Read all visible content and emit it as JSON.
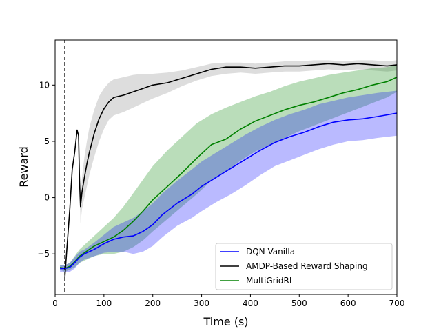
{
  "chart_data": {
    "type": "line",
    "title": "",
    "xlabel": "Time (s)",
    "ylabel": "Reward",
    "xlim": [
      0,
      700
    ],
    "ylim": [
      -8.6,
      14
    ],
    "xticks": [
      0,
      100,
      200,
      300,
      400,
      500,
      600,
      700
    ],
    "yticks": [
      -5,
      0,
      5,
      10
    ],
    "grid": false,
    "legend_position": "lower-right",
    "vline": {
      "x": 20,
      "style": "dashed",
      "color": "#000000"
    },
    "series": [
      {
        "name": "DQN Vanilla",
        "color": "#0000ff",
        "x": [
          10,
          20,
          30,
          40,
          50,
          60,
          80,
          100,
          120,
          140,
          160,
          180,
          200,
          220,
          250,
          280,
          300,
          330,
          360,
          390,
          420,
          450,
          480,
          510,
          540,
          570,
          600,
          630,
          660,
          700
        ],
        "y": [
          -6.3,
          -6.3,
          -6.2,
          -5.8,
          -5.3,
          -5.0,
          -4.6,
          -4.1,
          -3.7,
          -3.5,
          -3.4,
          -3.0,
          -2.4,
          -1.5,
          -0.5,
          0.3,
          1.0,
          1.8,
          2.6,
          3.4,
          4.2,
          4.9,
          5.4,
          5.8,
          6.3,
          6.7,
          6.9,
          7.0,
          7.2,
          7.5
        ],
        "upper": [
          -6.0,
          -6.0,
          -5.8,
          -5.3,
          -4.8,
          -4.6,
          -4.0,
          -3.3,
          -2.6,
          -2.2,
          -1.8,
          -1.2,
          -0.5,
          0.4,
          1.5,
          2.5,
          3.2,
          4.0,
          4.8,
          5.6,
          6.3,
          6.9,
          7.4,
          7.8,
          8.3,
          8.6,
          8.9,
          9.1,
          9.3,
          9.5
        ],
        "lower": [
          -6.6,
          -6.6,
          -6.6,
          -6.3,
          -5.8,
          -5.5,
          -5.2,
          -4.9,
          -4.8,
          -4.8,
          -5.0,
          -4.8,
          -4.3,
          -3.5,
          -2.5,
          -1.8,
          -1.2,
          -0.4,
          0.3,
          1.1,
          2.0,
          2.8,
          3.3,
          3.8,
          4.3,
          4.7,
          5.0,
          5.1,
          5.3,
          5.5
        ]
      },
      {
        "name": "AMDP-Based Reward Shaping",
        "color": "#000000",
        "fill": "#808080",
        "x": [
          20,
          25,
          30,
          35,
          40,
          45,
          48,
          50,
          52,
          55,
          60,
          65,
          70,
          80,
          90,
          100,
          110,
          120,
          140,
          160,
          180,
          200,
          230,
          260,
          290,
          320,
          350,
          380,
          410,
          440,
          470,
          500,
          530,
          560,
          590,
          620,
          650,
          680,
          700
        ],
        "y": [
          -7.0,
          -4.0,
          -1.0,
          2.5,
          4.0,
          6.0,
          5.5,
          1.5,
          -0.8,
          0.5,
          1.8,
          3.0,
          4.0,
          5.7,
          7.0,
          7.9,
          8.5,
          8.9,
          9.1,
          9.4,
          9.7,
          10.0,
          10.2,
          10.6,
          11.0,
          11.4,
          11.6,
          11.6,
          11.5,
          11.6,
          11.7,
          11.7,
          11.8,
          11.9,
          11.8,
          11.9,
          11.8,
          11.7,
          11.8
        ],
        "upper": [
          -7.0,
          -4.0,
          -1.0,
          2.5,
          4.0,
          6.0,
          5.5,
          1.5,
          0.0,
          1.8,
          3.6,
          5.0,
          6.2,
          7.8,
          9.0,
          9.7,
          10.2,
          10.5,
          10.7,
          10.9,
          11.0,
          11.0,
          11.1,
          11.3,
          11.6,
          11.9,
          12.0,
          12.0,
          11.9,
          12.0,
          12.1,
          12.1,
          12.2,
          12.2,
          12.1,
          12.2,
          12.2,
          12.1,
          12.2
        ],
        "lower": [
          -7.0,
          -4.0,
          -1.0,
          2.5,
          4.0,
          6.0,
          5.5,
          1.5,
          -2.3,
          -1.0,
          0.0,
          1.0,
          2.0,
          3.6,
          5.0,
          6.1,
          6.9,
          7.3,
          7.6,
          8.0,
          8.4,
          8.8,
          9.3,
          9.9,
          10.4,
          10.8,
          11.0,
          11.1,
          11.0,
          11.1,
          11.2,
          11.2,
          11.3,
          11.4,
          11.3,
          11.4,
          11.3,
          11.2,
          11.3
        ]
      },
      {
        "name": "MultiGridRL",
        "color": "#008000",
        "x": [
          10,
          20,
          30,
          40,
          50,
          60,
          80,
          100,
          120,
          140,
          160,
          180,
          200,
          230,
          260,
          290,
          320,
          350,
          380,
          410,
          440,
          470,
          500,
          530,
          560,
          590,
          620,
          650,
          680,
          700
        ],
        "y": [
          -6.2,
          -6.3,
          -6.1,
          -5.7,
          -5.2,
          -4.9,
          -4.3,
          -3.9,
          -3.5,
          -2.9,
          -2.1,
          -1.2,
          -0.2,
          1.0,
          2.2,
          3.5,
          4.7,
          5.2,
          6.1,
          6.8,
          7.3,
          7.8,
          8.2,
          8.5,
          8.9,
          9.3,
          9.6,
          10.0,
          10.3,
          10.7
        ],
        "upper": [
          -6.0,
          -6.0,
          -5.8,
          -5.2,
          -4.6,
          -4.2,
          -3.4,
          -2.6,
          -1.8,
          -0.8,
          0.4,
          1.6,
          2.8,
          4.2,
          5.4,
          6.6,
          7.4,
          8.0,
          8.5,
          9.0,
          9.4,
          9.9,
          10.3,
          10.6,
          10.9,
          11.1,
          11.3,
          11.5,
          11.6,
          11.8
        ],
        "lower": [
          -6.4,
          -6.6,
          -6.4,
          -6.2,
          -5.8,
          -5.6,
          -5.2,
          -5.0,
          -5.0,
          -4.8,
          -4.4,
          -3.8,
          -3.0,
          -1.9,
          -0.8,
          0.3,
          1.5,
          2.3,
          3.3,
          4.1,
          4.7,
          5.3,
          5.9,
          6.4,
          6.9,
          7.4,
          7.9,
          8.4,
          8.9,
          9.4
        ]
      }
    ]
  }
}
